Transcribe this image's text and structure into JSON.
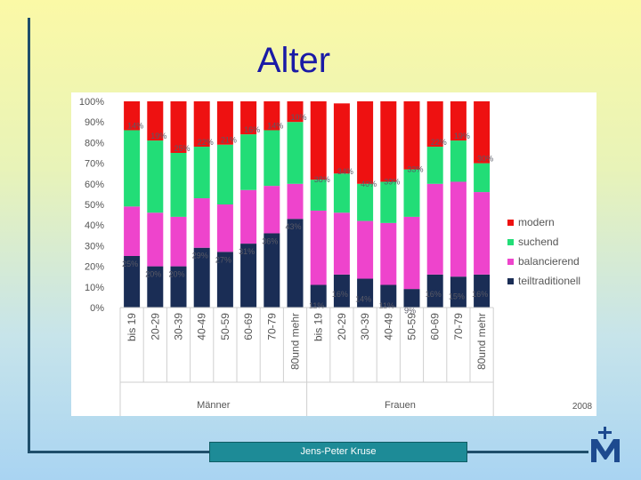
{
  "slide": {
    "title": "Alter",
    "author": "Jens-Peter Kruse"
  },
  "colors": {
    "modern": "#ee1111",
    "suchend": "#22dd77",
    "balancierend": "#ee44cc",
    "teiltraditionell": "#1a2d55",
    "title": "#1a1aa6",
    "frame": "#1f4e6b",
    "footer": "#1d8b97",
    "logo": "#1d4a8f"
  },
  "chart_data": {
    "type": "bar",
    "stacked": true,
    "percent": true,
    "yticks": [
      "0%",
      "10%",
      "20%",
      "30%",
      "40%",
      "50%",
      "60%",
      "70%",
      "80%",
      "90%",
      "100%"
    ],
    "ylim": [
      0,
      100
    ],
    "categories": [
      "bis 19",
      "20-29",
      "30-39",
      "40-49",
      "50-59",
      "60-69",
      "70-79",
      "80und mehr",
      "bis 19",
      "20-29",
      "30-39",
      "40-49",
      "50-59",
      "60-69",
      "70-79",
      "80und mehr"
    ],
    "groups": [
      {
        "name": "Männer",
        "start": 0,
        "count": 8
      },
      {
        "name": "Frauen",
        "start": 8,
        "count": 8
      }
    ],
    "year": "2008",
    "legend_position": "right",
    "series": [
      {
        "name": "teiltraditionell",
        "key": "teiltraditionell",
        "values": [
          25,
          20,
          20,
          29,
          27,
          31,
          36,
          43,
          11,
          16,
          14,
          11,
          9,
          16,
          15,
          16
        ],
        "labels": [
          "25%",
          "20%",
          "20%",
          "29%",
          "27%",
          "31%",
          "36%",
          "43%",
          "11%",
          "16%",
          "14%",
          "11%",
          "9%",
          "16%",
          "15%",
          "16%"
        ]
      },
      {
        "name": "balancierend",
        "key": "balancierend",
        "values": [
          24,
          26,
          24,
          24,
          23,
          26,
          23,
          17,
          36,
          30,
          28,
          30,
          35,
          44,
          46,
          40
        ],
        "labels": [
          "",
          "",
          "",
          "",
          "",
          "",
          "",
          "",
          "",
          "",
          "",
          "",
          "",
          "",
          "",
          ""
        ]
      },
      {
        "name": "suchend",
        "key": "suchend",
        "values": [
          37,
          35,
          31,
          25,
          29,
          27,
          27,
          30,
          15,
          19,
          18,
          20,
          23,
          18,
          20,
          14
        ],
        "labels": [
          "",
          "",
          "",
          "",
          "",
          "",
          "",
          "",
          "",
          "",
          "",
          "",
          "",
          "",
          "",
          ""
        ]
      },
      {
        "name": "modern",
        "key": "modern",
        "values": [
          14,
          19,
          25,
          22,
          21,
          16,
          14,
          10,
          38,
          34,
          40,
          39,
          33,
          22,
          19,
          30
        ],
        "labels": [
          "14%",
          "19%",
          "25%",
          "22%",
          "21%",
          "16%",
          "14%",
          "10%",
          "38%",
          "34%",
          "40%",
          "39%",
          "33%",
          "22%",
          "19%",
          "30%"
        ]
      }
    ],
    "legend_order": [
      "modern",
      "suchend",
      "balancierend",
      "teiltraditionell"
    ]
  }
}
